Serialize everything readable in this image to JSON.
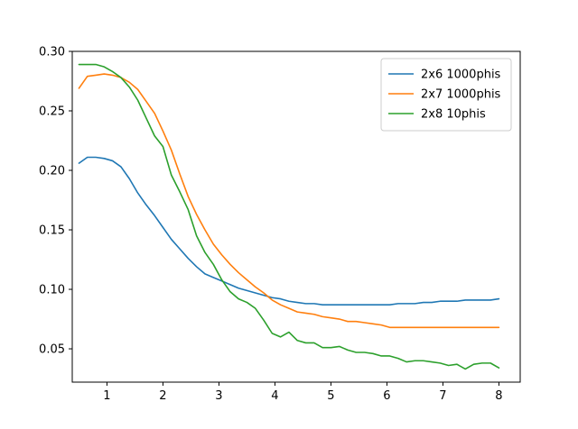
{
  "chart_data": {
    "type": "line",
    "title": "",
    "xlabel": "",
    "ylabel": "",
    "xlim": [
      0.38,
      8.38
    ],
    "ylim": [
      0.022,
      0.3
    ],
    "x_ticks": [
      1,
      2,
      3,
      4,
      5,
      6,
      7,
      8
    ],
    "y_ticks": [
      0.05,
      0.1,
      0.15,
      0.2,
      0.25,
      0.3
    ],
    "x_tick_labels": [
      "1",
      "2",
      "3",
      "4",
      "5",
      "6",
      "7",
      "8"
    ],
    "y_tick_labels": [
      "0.05",
      "0.10",
      "0.15",
      "0.20",
      "0.25",
      "0.30"
    ],
    "grid": false,
    "legend": {
      "position": "top-right"
    },
    "series": [
      {
        "name": "2x6 1000phis",
        "color": "#1f77b4",
        "x": [
          0.5,
          0.65,
          0.8,
          0.95,
          1.1,
          1.25,
          1.4,
          1.55,
          1.7,
          1.85,
          2.0,
          2.15,
          2.3,
          2.45,
          2.6,
          2.75,
          2.9,
          3.05,
          3.2,
          3.35,
          3.5,
          3.65,
          3.8,
          3.95,
          4.1,
          4.25,
          4.4,
          4.55,
          4.7,
          4.85,
          5.0,
          5.15,
          5.3,
          5.45,
          5.6,
          5.75,
          5.9,
          6.05,
          6.2,
          6.35,
          6.5,
          6.65,
          6.8,
          6.95,
          7.1,
          7.25,
          7.4,
          7.55,
          7.7,
          7.85,
          8.0
        ],
        "values": [
          0.206,
          0.211,
          0.211,
          0.21,
          0.208,
          0.203,
          0.193,
          0.181,
          0.171,
          0.162,
          0.152,
          0.142,
          0.134,
          0.126,
          0.119,
          0.113,
          0.11,
          0.107,
          0.104,
          0.101,
          0.099,
          0.097,
          0.095,
          0.093,
          0.092,
          0.09,
          0.089,
          0.088,
          0.088,
          0.087,
          0.087,
          0.087,
          0.087,
          0.087,
          0.087,
          0.087,
          0.087,
          0.087,
          0.088,
          0.088,
          0.088,
          0.089,
          0.089,
          0.09,
          0.09,
          0.09,
          0.091,
          0.091,
          0.091,
          0.091,
          0.092
        ]
      },
      {
        "name": "2x7 1000phis",
        "color": "#ff7f0e",
        "x": [
          0.5,
          0.65,
          0.8,
          0.95,
          1.1,
          1.25,
          1.4,
          1.55,
          1.7,
          1.85,
          2.0,
          2.15,
          2.3,
          2.45,
          2.6,
          2.75,
          2.9,
          3.05,
          3.2,
          3.35,
          3.5,
          3.65,
          3.8,
          3.95,
          4.1,
          4.25,
          4.4,
          4.55,
          4.7,
          4.85,
          5.0,
          5.15,
          5.3,
          5.45,
          5.6,
          5.75,
          5.9,
          6.05,
          6.2,
          6.35,
          6.5,
          6.65,
          6.8,
          6.95,
          7.1,
          7.25,
          7.4,
          7.55,
          7.7,
          7.85,
          8.0
        ],
        "values": [
          0.269,
          0.279,
          0.28,
          0.281,
          0.28,
          0.278,
          0.274,
          0.268,
          0.258,
          0.248,
          0.233,
          0.217,
          0.197,
          0.178,
          0.163,
          0.15,
          0.138,
          0.129,
          0.121,
          0.114,
          0.108,
          0.102,
          0.097,
          0.091,
          0.087,
          0.084,
          0.081,
          0.08,
          0.079,
          0.077,
          0.076,
          0.075,
          0.073,
          0.073,
          0.072,
          0.071,
          0.07,
          0.068,
          0.068,
          0.068,
          0.068,
          0.068,
          0.068,
          0.068,
          0.068,
          0.068,
          0.068,
          0.068,
          0.068,
          0.068,
          0.068
        ]
      },
      {
        "name": "2x8 10phis",
        "color": "#2ca02c",
        "x": [
          0.5,
          0.65,
          0.8,
          0.95,
          1.1,
          1.25,
          1.4,
          1.55,
          1.7,
          1.85,
          2.0,
          2.15,
          2.3,
          2.45,
          2.6,
          2.75,
          2.9,
          3.05,
          3.2,
          3.35,
          3.5,
          3.65,
          3.8,
          3.95,
          4.1,
          4.25,
          4.4,
          4.55,
          4.7,
          4.85,
          5.0,
          5.15,
          5.3,
          5.45,
          5.6,
          5.75,
          5.9,
          6.05,
          6.2,
          6.35,
          6.5,
          6.65,
          6.8,
          6.95,
          7.1,
          7.25,
          7.4,
          7.55,
          7.7,
          7.85,
          8.0
        ],
        "values": [
          0.289,
          0.289,
          0.289,
          0.287,
          0.283,
          0.278,
          0.27,
          0.259,
          0.244,
          0.229,
          0.22,
          0.196,
          0.182,
          0.167,
          0.145,
          0.131,
          0.121,
          0.108,
          0.098,
          0.092,
          0.089,
          0.084,
          0.074,
          0.063,
          0.06,
          0.064,
          0.057,
          0.055,
          0.055,
          0.051,
          0.051,
          0.052,
          0.049,
          0.047,
          0.047,
          0.046,
          0.044,
          0.044,
          0.042,
          0.039,
          0.04,
          0.04,
          0.039,
          0.038,
          0.036,
          0.037,
          0.033,
          0.037,
          0.038,
          0.038,
          0.034
        ]
      }
    ]
  }
}
